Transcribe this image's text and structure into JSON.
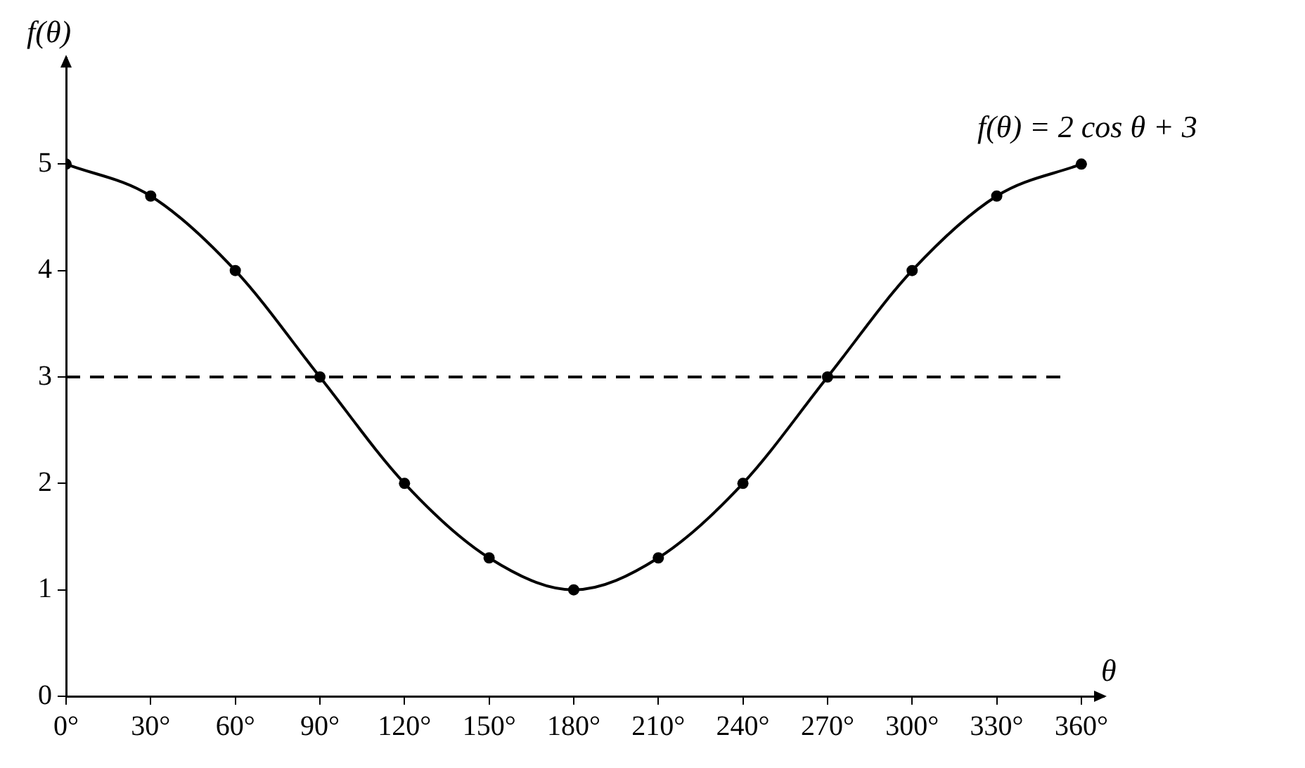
{
  "chart_data": {
    "type": "line",
    "x": [
      0,
      30,
      60,
      90,
      120,
      150,
      180,
      210,
      240,
      270,
      300,
      330,
      360
    ],
    "series": [
      {
        "color": "#000000",
        "values": [
          5,
          4.7,
          4,
          3,
          2,
          1.3,
          1,
          1.3,
          2,
          3,
          4,
          4.7,
          5
        ]
      }
    ],
    "marker": "circle",
    "line_style": "solid",
    "xlim": [
      0,
      368
    ],
    "ylim": [
      0,
      6
    ],
    "xticks": [
      {
        "value": 0,
        "label": "0°"
      },
      {
        "value": 30,
        "label": "30°"
      },
      {
        "value": 60,
        "label": "60°"
      },
      {
        "value": 90,
        "label": "90°"
      },
      {
        "value": 120,
        "label": "120°"
      },
      {
        "value": 150,
        "label": "150°"
      },
      {
        "value": 180,
        "label": "180°"
      },
      {
        "value": 210,
        "label": "210°"
      },
      {
        "value": 240,
        "label": "240°"
      },
      {
        "value": 270,
        "label": "270°"
      },
      {
        "value": 300,
        "label": "300°"
      },
      {
        "value": 330,
        "label": "330°"
      },
      {
        "value": 360,
        "label": "360°"
      }
    ],
    "yticks": [
      0,
      1,
      2,
      3,
      4,
      5
    ],
    "xlabel": "θ",
    "ylabel": "f(θ)",
    "ref_lines": [
      {
        "axis": "y",
        "value": 3,
        "line_style": "dashed",
        "color": "#000000"
      }
    ],
    "annotations": [
      {
        "text": "f(θ) = 2 cos θ + 3",
        "x": 360,
        "y": 5
      }
    ],
    "grid": false,
    "legend": false
  }
}
